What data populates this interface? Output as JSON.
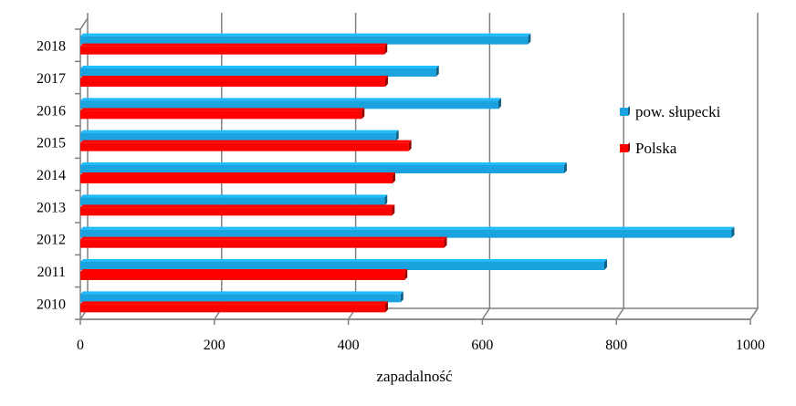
{
  "chart_data": {
    "type": "bar",
    "orientation": "horizontal",
    "categories": [
      "2010",
      "2011",
      "2012",
      "2013",
      "2014",
      "2015",
      "2016",
      "2017",
      "2018"
    ],
    "series": [
      {
        "name": "pow. słupecki",
        "color": "#1BA3E0",
        "values": [
          478,
          782,
          972,
          454,
          722,
          471,
          624,
          531,
          668
        ]
      },
      {
        "name": "Polska",
        "color": "#FF0000",
        "values": [
          455,
          484,
          543,
          465,
          466,
          490,
          420,
          455,
          454
        ]
      }
    ],
    "xlabel": "zapadalność",
    "ylabel": "",
    "xlim": [
      0,
      1000
    ],
    "xticks": [
      "0",
      "200",
      "400",
      "600",
      "800",
      "1000"
    ],
    "grid": true,
    "legend_position": "right"
  }
}
